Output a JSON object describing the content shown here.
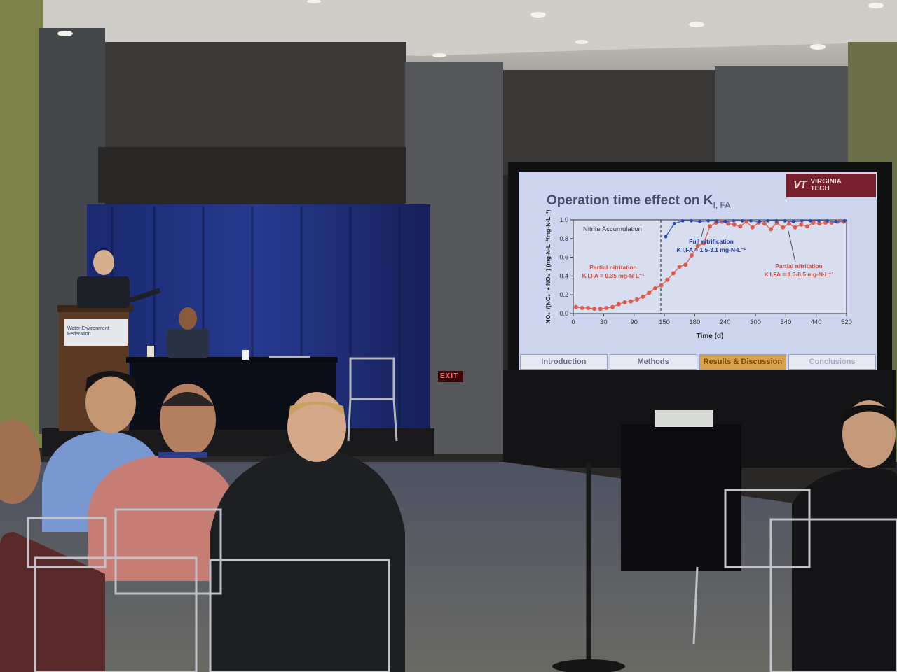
{
  "podium": {
    "logo_text": "Water Environment Federation"
  },
  "exit_sign": "EXIT",
  "slide": {
    "title": "Operation time effect on K",
    "title_subscript": "I, FA",
    "logo": {
      "mark": "VT",
      "line1": "VIRGINIA",
      "line2": "TECH"
    },
    "nav_tabs": [
      {
        "label": "Introduction",
        "state": "normal"
      },
      {
        "label": "Methods",
        "state": "normal"
      },
      {
        "label": "Results & Discussion",
        "state": "active"
      },
      {
        "label": "Conclusions",
        "state": "faded"
      }
    ],
    "colors": {
      "accent_logo": "#7a1f2e",
      "red_series": "#e05a4a",
      "blue_series": "#3a63c8",
      "active_tab": "#d9a24a"
    },
    "chart_data": {
      "type": "scatter",
      "xlabel": "Time (d)",
      "ylabel": "NO₂⁻/(NO₂⁻+ NO₃⁻) (mg-N·L⁻¹/mg-N·L⁻¹)",
      "xticks": [
        "0",
        "30",
        "90",
        "150",
        "180",
        "240",
        "300",
        "340",
        "440",
        "520"
      ],
      "yticks": [
        "0.0",
        "0.2",
        "0.4",
        "0.6",
        "0.8",
        "1.0"
      ],
      "ylim": [
        0,
        1
      ],
      "annotations": [
        "Nitrite Accumulation",
        "Full nitrification",
        "K I,FA = 1.5-3.1 mg-N·L⁻¹",
        "Partial nitritation",
        "K I,FA = 0.35 mg-N·L⁻¹",
        "Partial nitritation",
        "K I,FA = 8.5-8.5 mg-N·L⁻¹"
      ],
      "series": [
        {
          "color": "red",
          "y": [
            0.07,
            0.06,
            0.06,
            0.05,
            0.05,
            0.06,
            0.07,
            0.1,
            0.12,
            0.13,
            0.15,
            0.18,
            0.22,
            0.27,
            0.3,
            0.36,
            0.43,
            0.5,
            0.52,
            0.62,
            0.72,
            0.75,
            0.93,
            0.97,
            0.98,
            0.96,
            0.95,
            0.93,
            0.98,
            0.92,
            0.97,
            0.96,
            0.9,
            0.97,
            0.92,
            0.96,
            0.92,
            0.95,
            0.93,
            0.97,
            0.96,
            0.97,
            0.97,
            0.98,
            0.98
          ]
        },
        {
          "color": "blue",
          "y": [
            0.82,
            0.96,
            0.99,
            0.99,
            0.98,
            0.99,
            0.99,
            0.98,
            0.99,
            0.99,
            0.99,
            0.98,
            0.99,
            0.99,
            0.99,
            0.98,
            0.99,
            0.99,
            0.99,
            0.99,
            0.98,
            0.99
          ]
        }
      ]
    }
  }
}
